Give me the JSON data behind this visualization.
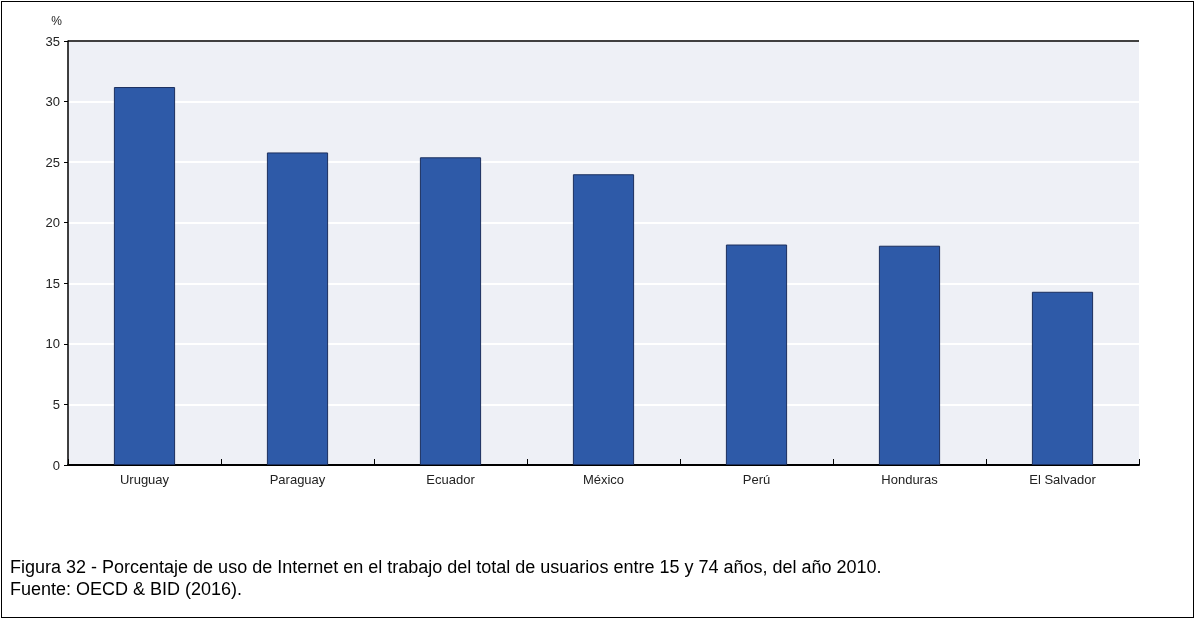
{
  "chart_data": {
    "type": "bar",
    "ylabel": "%",
    "categories": [
      "Uruguay",
      "Paraguay",
      "Ecuador",
      "México",
      "Perú",
      "Honduras",
      "El Salvador"
    ],
    "values": [
      31.2,
      25.8,
      25.4,
      24.0,
      18.2,
      18.1,
      14.3
    ],
    "color": "#2e5aa8",
    "ylim": [
      0,
      35
    ],
    "yticks": [
      0,
      5,
      10,
      15,
      20,
      25,
      30,
      35
    ],
    "grid": "y",
    "annotations": [
      "Figura 32 - Porcentaje de uso de Internet en el trabajo del total de usuarios entre 15 y 74 años, del año 2010.",
      "Fuente: OECD & BID (2016)."
    ]
  }
}
